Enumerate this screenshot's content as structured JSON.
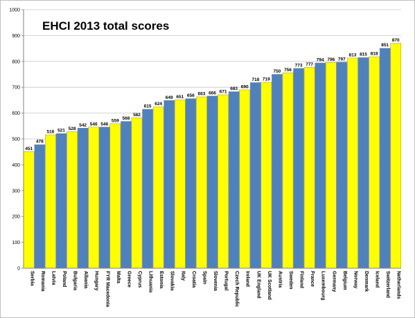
{
  "chart_data": {
    "type": "bar",
    "title": "EHCI 2013 total scores",
    "xlabel": "",
    "ylabel": "",
    "ylim": [
      0,
      1000
    ],
    "yticks": [
      0,
      100,
      200,
      300,
      400,
      500,
      600,
      700,
      800,
      900,
      1000
    ],
    "grid": true,
    "legend": "none",
    "colors": [
      "#ffff00",
      "#4f81bd"
    ],
    "categories": [
      "Serbia",
      "Romania",
      "Latvia",
      "Poland",
      "Bulgaria",
      "Albania",
      "Hungary",
      "FYR Macedonia",
      "Malta",
      "Greece",
      "Cyprus",
      "Lithuania",
      "Estonia",
      "Slovakia",
      "Italy",
      "Croatia",
      "Spain",
      "Slovenia",
      "Portugal",
      "Czech Republic",
      "Ireland",
      "UK England",
      "UK Scotland",
      "Austria",
      "Sweden",
      "Finland",
      "France",
      "Luxembourg",
      "Germany",
      "Belgium",
      "Norway",
      "Denmark",
      "Iceland",
      "Switzerland",
      "Netherlands"
    ],
    "values": [
      451,
      478,
      516,
      521,
      528,
      542,
      546,
      546,
      559,
      568,
      582,
      615,
      624,
      649,
      651,
      656,
      663,
      666,
      671,
      683,
      690,
      718,
      719,
      750,
      756,
      773,
      777,
      794,
      796,
      797,
      813,
      815,
      818,
      851,
      870
    ]
  }
}
